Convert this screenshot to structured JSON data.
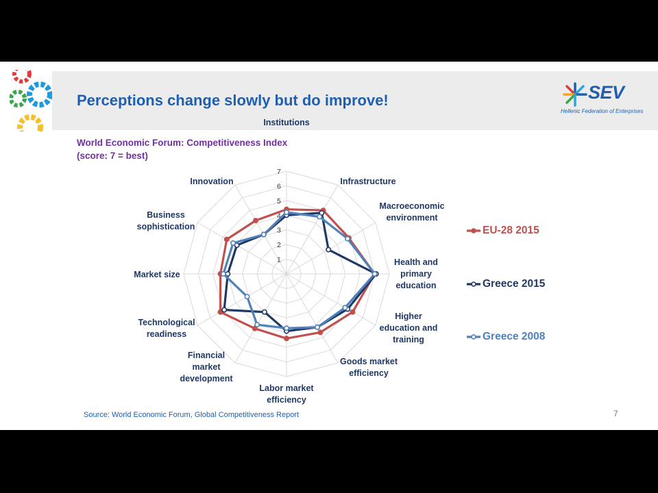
{
  "slide": {
    "title": "Perceptions change slowly but do improve!",
    "chart_title_line1": "World Economic Forum: Competitiveness Index",
    "chart_title_line2": "(score: 7 = best)",
    "source": "Source: World  Economic Forum, Global Competitiveness Report",
    "page_number": "7",
    "logo_text": "SEV",
    "logo_tagline": "Hellenic Federation of Enterprises",
    "colors": {
      "title": "#1f5fb0",
      "chart_title": "#7030a0",
      "header_band": "#ececec"
    }
  },
  "chart_data": {
    "type": "radar",
    "categories": [
      "Institutions",
      "Infrastructure",
      "Macroeconomic environment",
      "Health and primary education",
      "Higher education and training",
      "Goods market efficiency",
      "Labor market efficiency",
      "Financial market development",
      "Technological readiness",
      "Market size",
      "Business sophistication",
      "Innovation"
    ],
    "category_label_lines": [
      [
        "Institutions"
      ],
      [
        "Infrastructure"
      ],
      [
        "Macroeconomic",
        "environment"
      ],
      [
        "Health and",
        "primary",
        "education"
      ],
      [
        "Higher",
        "education and",
        "training"
      ],
      [
        "Goods market",
        "efficiency"
      ],
      [
        "Labor market",
        "efficiency"
      ],
      [
        "Financial",
        "market",
        "development"
      ],
      [
        "Technological",
        "readiness"
      ],
      [
        "Market size"
      ],
      [
        "Business",
        "sophistication"
      ],
      [
        "Innovation"
      ]
    ],
    "rlim": [
      0,
      7
    ],
    "ticks": [
      "1",
      "2",
      "3",
      "4",
      "5",
      "6",
      "7"
    ],
    "series": [
      {
        "name": "EU-28 2015",
        "color": "#c0504d",
        "values": [
          4.4,
          5.0,
          4.9,
          6.0,
          5.2,
          4.6,
          4.4,
          4.3,
          5.2,
          4.5,
          4.7,
          4.2
        ]
      },
      {
        "name": "Greece 2015",
        "color": "#1f3864",
        "values": [
          4.0,
          4.8,
          3.3,
          6.1,
          4.8,
          4.2,
          3.9,
          3.0,
          4.9,
          4.0,
          3.9,
          3.1
        ]
      },
      {
        "name": "Greece 2008",
        "color": "#4f81bd",
        "values": [
          4.2,
          4.5,
          4.8,
          6.0,
          4.6,
          4.2,
          3.7,
          4.0,
          3.1,
          4.3,
          4.2,
          3.1
        ]
      }
    ],
    "legend_position": "right",
    "grid": true
  }
}
